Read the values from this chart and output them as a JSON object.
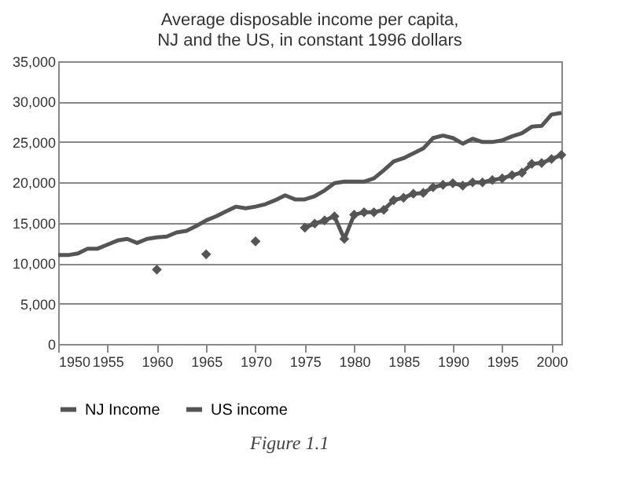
{
  "chart_data": {
    "type": "line",
    "title": [
      "Average disposable income per capita,",
      "NJ and the US, in constant 1996 dollars"
    ],
    "x": [
      1950,
      1951,
      1952,
      1953,
      1954,
      1955,
      1956,
      1957,
      1958,
      1959,
      1960,
      1961,
      1962,
      1963,
      1964,
      1965,
      1966,
      1967,
      1968,
      1969,
      1970,
      1971,
      1972,
      1973,
      1974,
      1975,
      1976,
      1977,
      1978,
      1979,
      1980,
      1981,
      1982,
      1983,
      1984,
      1985,
      1986,
      1987,
      1988,
      1989,
      1990,
      1991,
      1992,
      1993,
      1994,
      1995,
      1996,
      1997,
      1998,
      1999,
      2000,
      2001
    ],
    "series": [
      {
        "name": "NJ Income",
        "color": "#555555",
        "marker": "none",
        "values": [
          11000,
          11000,
          11200,
          11800,
          11800,
          12300,
          12800,
          13000,
          12500,
          13000,
          13200,
          13300,
          13800,
          14000,
          14600,
          15300,
          15800,
          16400,
          17000,
          16800,
          17000,
          17300,
          17800,
          18400,
          17900,
          17900,
          18300,
          19000,
          19900,
          20100,
          20100,
          20100,
          20500,
          21500,
          22600,
          23000,
          23600,
          24200,
          25500,
          25800,
          25500,
          24800,
          25400,
          25000,
          25000,
          25200,
          25700,
          26100,
          26900,
          27000,
          28400,
          28600
        ]
      },
      {
        "name": "US income",
        "color": "#555555",
        "marker": "diamond",
        "values": [
          null,
          null,
          null,
          null,
          null,
          null,
          null,
          null,
          null,
          null,
          9200,
          null,
          null,
          null,
          null,
          11100,
          null,
          null,
          null,
          null,
          12700,
          null,
          null,
          null,
          null,
          14400,
          14900,
          15300,
          15800,
          13000,
          16000,
          16300,
          16300,
          16600,
          17800,
          18100,
          18600,
          18700,
          19400,
          19700,
          19900,
          19600,
          20000,
          20000,
          20300,
          20500,
          20900,
          21200,
          22300,
          22400,
          22900,
          23400
        ]
      }
    ],
    "xlim": [
      1950,
      2001
    ],
    "xticks": [
      1950,
      1955,
      1960,
      1965,
      1970,
      1975,
      1980,
      1985,
      1990,
      1995,
      2000
    ],
    "ylim": [
      0,
      35000
    ],
    "yticks": [
      0,
      {
        "value": 5000,
        "label": "5,000"
      },
      {
        "value": 10000,
        "label": "10,000"
      },
      {
        "value": 15000,
        "label": "15,000"
      },
      {
        "value": 20000,
        "label": "20,000"
      },
      {
        "value": 25000,
        "label": "25,000"
      },
      {
        "value": 30000,
        "label": "30,000"
      },
      {
        "value": 35000,
        "label": "35,000"
      }
    ],
    "line_style": "solid",
    "grid": "y",
    "legend": "bottom",
    "annotations": [
      "Figure 1.1"
    ]
  }
}
